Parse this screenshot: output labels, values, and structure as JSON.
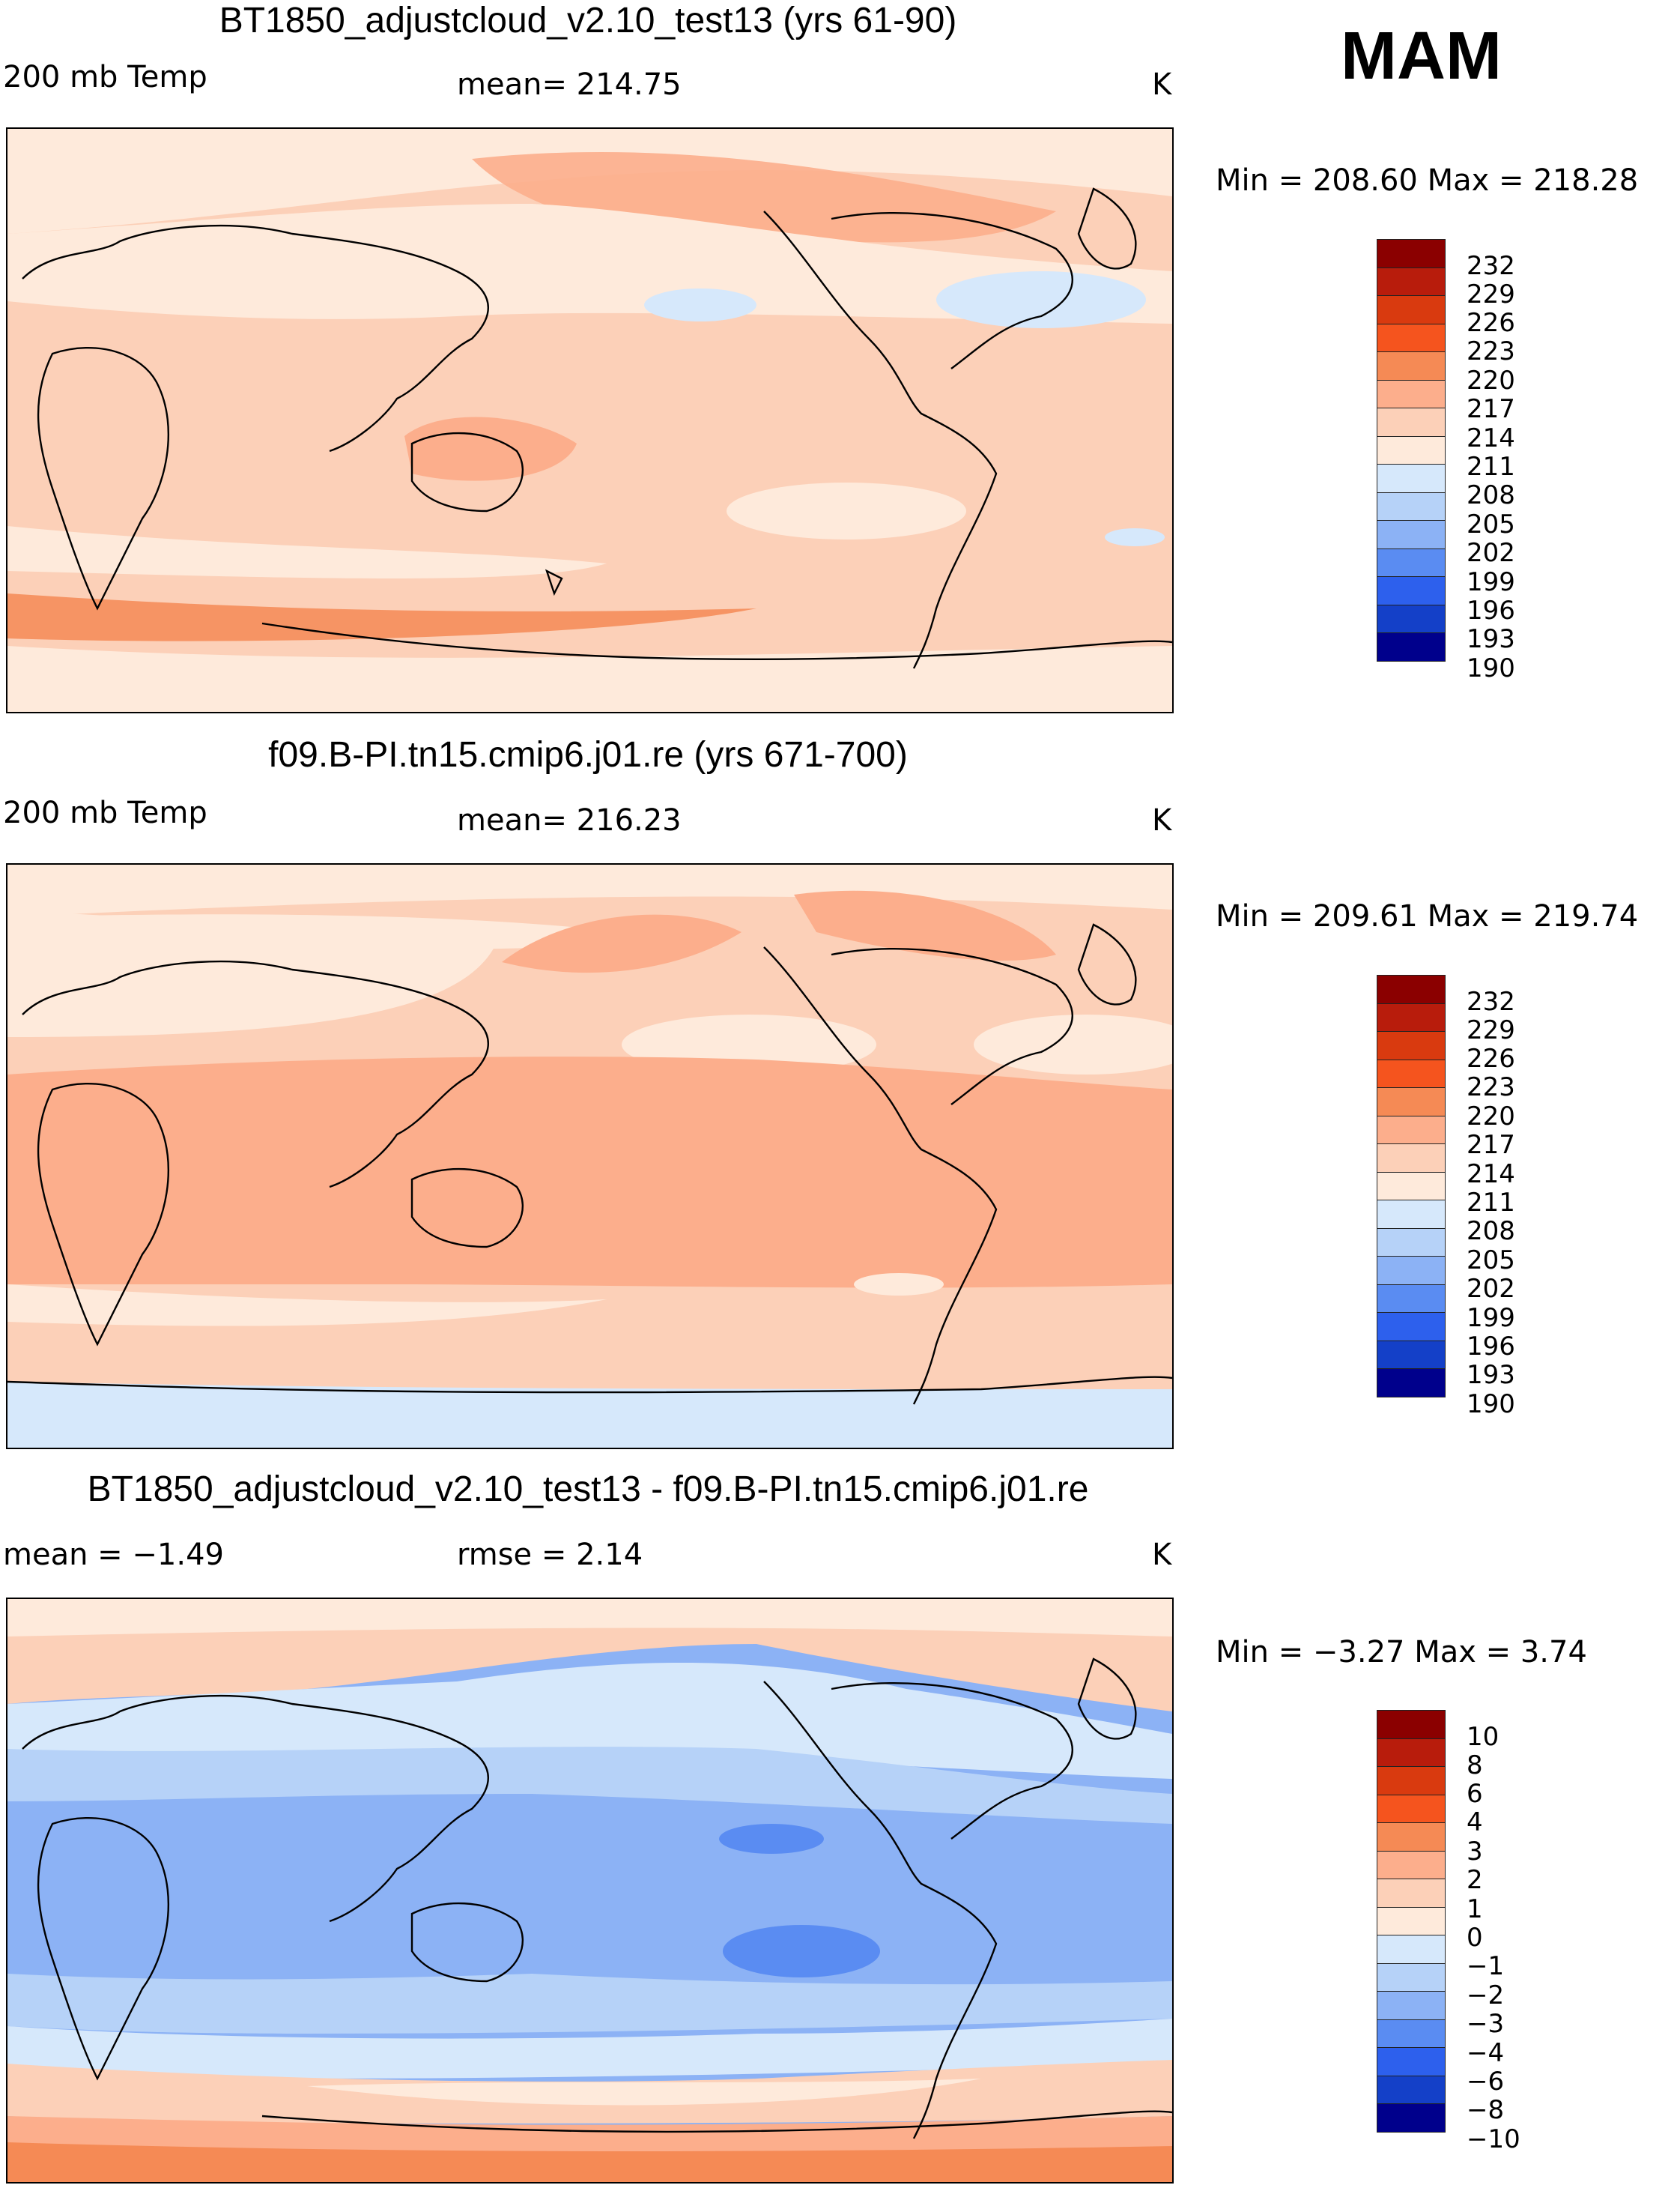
{
  "season": "MAM",
  "panels": [
    {
      "title": "BT1850_adjustcloud_v2.10_test13 (yrs 61-90)",
      "left_label": "200 mb Temp",
      "center_label": "mean= 214.75",
      "units": "K",
      "minmax": "Min = 208.60 Max = 218.28",
      "colorbar_labels": [
        "232",
        "229",
        "226",
        "223",
        "220",
        "217",
        "214",
        "211",
        "208",
        "205",
        "202",
        "199",
        "196",
        "193",
        "190"
      ],
      "map_icon": "world-map-icon"
    },
    {
      "title": "f09.B-PI.tn15.cmip6.j01.re (yrs 671-700)",
      "left_label": "200 mb Temp",
      "center_label": "mean= 216.23",
      "units": "K",
      "minmax": "Min = 209.61 Max = 219.74",
      "colorbar_labels": [
        "232",
        "229",
        "226",
        "223",
        "220",
        "217",
        "214",
        "211",
        "208",
        "205",
        "202",
        "199",
        "196",
        "193",
        "190"
      ],
      "map_icon": "world-map-icon"
    },
    {
      "title": "BT1850_adjustcloud_v2.10_test13 - f09.B-PI.tn15.cmip6.j01.re",
      "left_label": "mean = −1.49",
      "center_label": "rmse = 2.14",
      "units": "K",
      "minmax": "Min = −3.27 Max = 3.74",
      "colorbar_labels": [
        "10",
        "8",
        "6",
        "4",
        "3",
        "2",
        "1",
        "0",
        "−1",
        "−2",
        "−3",
        "−4",
        "−6",
        "−8",
        "−10"
      ],
      "map_icon": "world-map-icon"
    }
  ],
  "colors": {
    "colorbar_top_to_bottom": [
      "#8b0000",
      "#b81c0c",
      "#d93a0f",
      "#f5541e",
      "#f58a55",
      "#fcae8c",
      "#fcd0b8",
      "#feeadb",
      "#d6e8fb",
      "#b6d2f8",
      "#8cb2f5",
      "#5a8cf2",
      "#2d60ed",
      "#1440c8",
      "#00008c"
    ]
  }
}
